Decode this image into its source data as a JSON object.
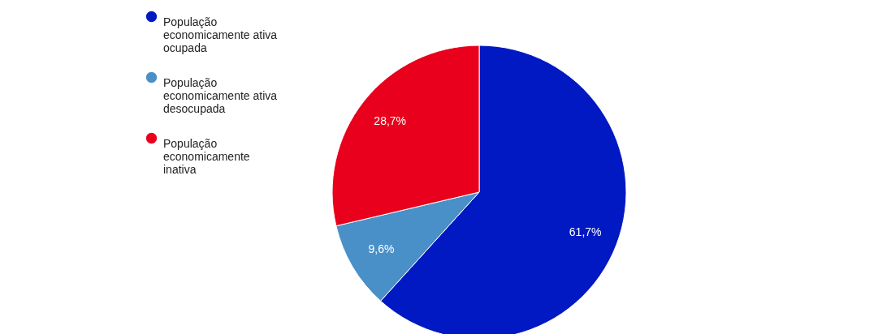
{
  "chart_data": {
    "type": "pie",
    "categories": [
      "População economicamente ativa ocupada",
      "População economicamente ativa desocupada",
      "População economicamente inativa"
    ],
    "values": [
      61.7,
      9.6,
      28.7
    ],
    "colors": [
      "#0019c2",
      "#4a90c8",
      "#e8001c"
    ],
    "value_labels": [
      "61,7%",
      "9,6%",
      "28,7%"
    ],
    "legend": "top left"
  }
}
